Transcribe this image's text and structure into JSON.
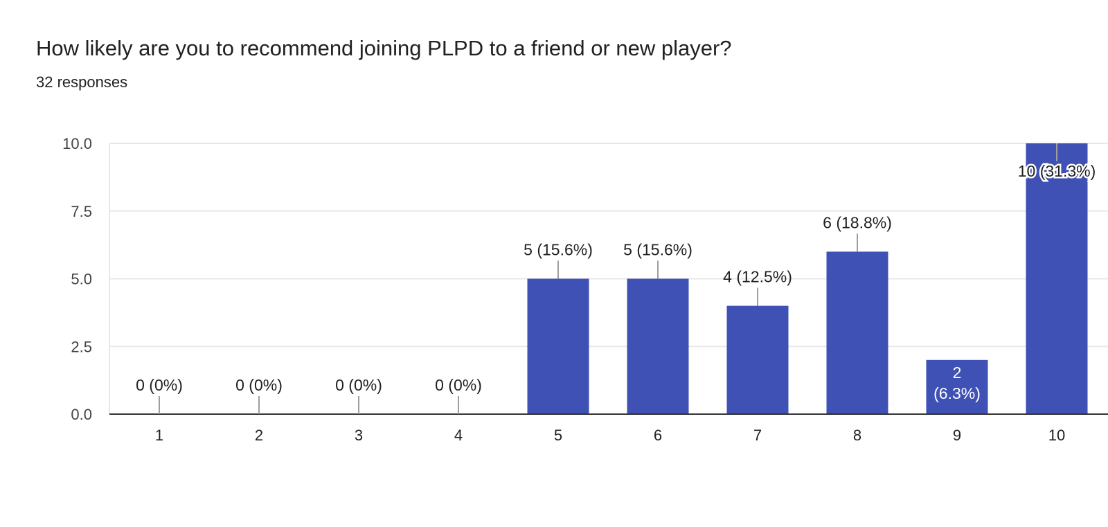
{
  "header": {
    "title": "How likely are you to recommend joining PLPD to a friend or new player?",
    "subtitle": "32 responses"
  },
  "colors": {
    "bar": "#3f51b5",
    "grid": "#e8e8e8",
    "axis": "#333333",
    "label": "#202124",
    "leader": "#9e9e9e"
  },
  "chart_data": {
    "type": "bar",
    "categories": [
      "1",
      "2",
      "3",
      "4",
      "5",
      "6",
      "7",
      "8",
      "9",
      "10"
    ],
    "values": [
      0,
      0,
      0,
      0,
      5,
      5,
      4,
      6,
      2,
      10
    ],
    "data_labels": [
      "0 (0%)",
      "0 (0%)",
      "0 (0%)",
      "0 (0%)",
      "5 (15.6%)",
      "5 (15.6%)",
      "4 (12.5%)",
      "6 (18.8%)",
      "2 (6.3%)",
      "10 (31.3%)"
    ],
    "yticks": [
      "0.0",
      "2.5",
      "5.0",
      "7.5",
      "10.0"
    ],
    "ylim": [
      0,
      10
    ],
    "grid": true,
    "legend": "none"
  }
}
